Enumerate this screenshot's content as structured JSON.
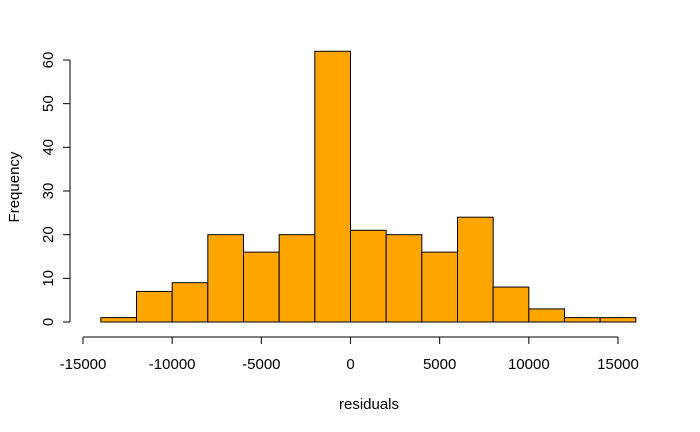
{
  "chart_data": {
    "type": "histogram",
    "title": "",
    "xlabel": "residuals",
    "ylabel": "Frequency",
    "bar_color": "#FFA500",
    "bin_width": 2000,
    "bins": [
      {
        "from": -14000,
        "to": -12000,
        "count": 1
      },
      {
        "from": -12000,
        "to": -10000,
        "count": 7
      },
      {
        "from": -10000,
        "to": -8000,
        "count": 9
      },
      {
        "from": -8000,
        "to": -6000,
        "count": 20
      },
      {
        "from": -6000,
        "to": -4000,
        "count": 16
      },
      {
        "from": -4000,
        "to": -2000,
        "count": 20
      },
      {
        "from": -2000,
        "to": 0,
        "count": 62
      },
      {
        "from": 0,
        "to": 2000,
        "count": 21
      },
      {
        "from": 2000,
        "to": 4000,
        "count": 20
      },
      {
        "from": 4000,
        "to": 6000,
        "count": 16
      },
      {
        "from": 6000,
        "to": 8000,
        "count": 24
      },
      {
        "from": 8000,
        "to": 10000,
        "count": 8
      },
      {
        "from": 10000,
        "to": 12000,
        "count": 3
      },
      {
        "from": 12000,
        "to": 14000,
        "count": 1
      },
      {
        "from": 14000,
        "to": 16000,
        "count": 1
      }
    ],
    "x_ticks": [
      -15000,
      -10000,
      -5000,
      0,
      5000,
      10000,
      15000
    ],
    "x_tick_labels": [
      "-15000",
      "-10000",
      "-5000",
      "0",
      "5000",
      "10000",
      "15000"
    ],
    "y_ticks": [
      0,
      10,
      20,
      30,
      40,
      50,
      60
    ],
    "y_tick_labels": [
      "0",
      "10",
      "20",
      "30",
      "40",
      "50",
      "60"
    ],
    "xlim": [
      -15000,
      15000
    ],
    "ylim": [
      0,
      60
    ],
    "grid": false
  }
}
